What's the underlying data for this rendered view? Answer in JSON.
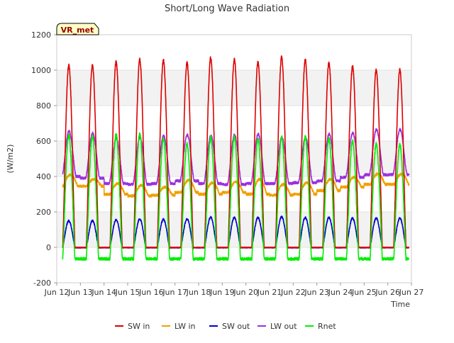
{
  "chart_data": {
    "type": "line",
    "title": "Short/Long Wave Radiation",
    "xlabel": "Time",
    "ylabel": "(W/m2)",
    "badge": "VR_met",
    "ylim": [
      -200,
      1200
    ],
    "yticks": [
      -200,
      0,
      200,
      400,
      600,
      800,
      1000,
      1200
    ],
    "xlim": [
      "2024-06-12",
      "2024-06-27"
    ],
    "xticks": [
      "Jun 12",
      "Jun 13",
      "Jun 14",
      "Jun 15",
      "Jun 16",
      "Jun 17",
      "Jun 18",
      "Jun 19",
      "Jun 20",
      "Jun 21",
      "Jun 22",
      "Jun 23",
      "Jun 24",
      "Jun 25",
      "Jun 26",
      "Jun 27"
    ],
    "grid": "horizontal bands",
    "legend_position": "bottom",
    "series": [
      {
        "name": "SW in",
        "color": "#dd0000",
        "daily_peaks": [
          1025,
          1025,
          1045,
          1060,
          1055,
          1040,
          1070,
          1060,
          1045,
          1075,
          1055,
          1040,
          1020,
          1000
        ],
        "night_value": 0
      },
      {
        "name": "LW in",
        "color": "#f0a000",
        "daily_peaks": [
          410,
          385,
          360,
          350,
          340,
          380,
          365,
          370,
          385,
          355,
          365,
          385,
          395,
          415
        ],
        "daily_troughs": [
          345,
          345,
          300,
          290,
          295,
          310,
          300,
          310,
          300,
          295,
          300,
          320,
          340,
          355
        ]
      },
      {
        "name": "SW out",
        "color": "#0000cc",
        "daily_peaks": [
          150,
          150,
          155,
          160,
          158,
          160,
          170,
          168,
          168,
          172,
          168,
          168,
          165,
          165
        ],
        "night_value": 0
      },
      {
        "name": "LW out",
        "color": "#9a30e0",
        "daily_peaks": [
          655,
          645,
          615,
          620,
          630,
          635,
          630,
          635,
          640,
          620,
          620,
          640,
          645,
          665
        ],
        "daily_troughs": [
          400,
          390,
          360,
          355,
          360,
          375,
          360,
          355,
          360,
          360,
          365,
          375,
          395,
          410
        ]
      },
      {
        "name": "Rnet",
        "color": "#00ee00",
        "daily_peaks": [
          630,
          625,
          635,
          640,
          610,
          580,
          620,
          620,
          610,
          620,
          620,
          610,
          600,
          580
        ],
        "night_value": -65
      }
    ]
  }
}
